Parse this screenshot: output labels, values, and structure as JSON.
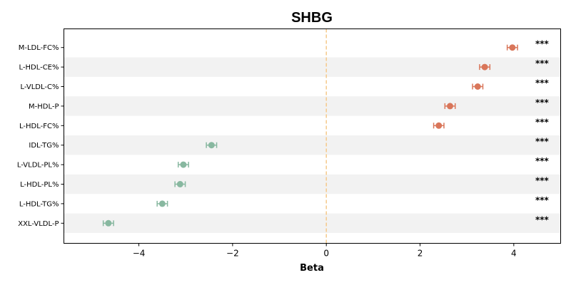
{
  "chart_data": {
    "type": "forest",
    "title": "SHBG",
    "xlabel": "Beta",
    "ylabel": "",
    "xlim": [
      -5.6,
      5.0
    ],
    "xticks": [
      -4,
      -2,
      0,
      2,
      4
    ],
    "xtick_labels": [
      "−4",
      "−2",
      "0",
      "2",
      "4"
    ],
    "reference_line": 0,
    "row_band_color": "#f2f2f2",
    "positive_color": "#d9765a",
    "negative_color": "#88b8a0",
    "reference_line_color": "#f5c98a",
    "points": [
      {
        "label": "M-LDL-FC%",
        "beta": 3.97,
        "lower": 3.86,
        "upper": 4.08,
        "significance": "***"
      },
      {
        "label": "L-HDL-CE%",
        "beta": 3.38,
        "lower": 3.27,
        "upper": 3.49,
        "significance": "***"
      },
      {
        "label": "L-VLDL-C%",
        "beta": 3.23,
        "lower": 3.12,
        "upper": 3.34,
        "significance": "***"
      },
      {
        "label": "M-HDL-P",
        "beta": 2.64,
        "lower": 2.53,
        "upper": 2.75,
        "significance": "***"
      },
      {
        "label": "L-HDL-FC%",
        "beta": 2.4,
        "lower": 2.29,
        "upper": 2.51,
        "significance": "***"
      },
      {
        "label": "IDL-TG%",
        "beta": -2.45,
        "lower": -2.56,
        "upper": -2.34,
        "significance": "***"
      },
      {
        "label": "L-VLDL-PL%",
        "beta": -3.05,
        "lower": -3.16,
        "upper": -2.94,
        "significance": "***"
      },
      {
        "label": "L-HDL-PL%",
        "beta": -3.12,
        "lower": -3.23,
        "upper": -3.01,
        "significance": "***"
      },
      {
        "label": "L-HDL-TG%",
        "beta": -3.5,
        "lower": -3.61,
        "upper": -3.39,
        "significance": "***"
      },
      {
        "label": "XXL-VLDL-P",
        "beta": -4.65,
        "lower": -4.76,
        "upper": -4.54,
        "significance": "***"
      }
    ]
  }
}
